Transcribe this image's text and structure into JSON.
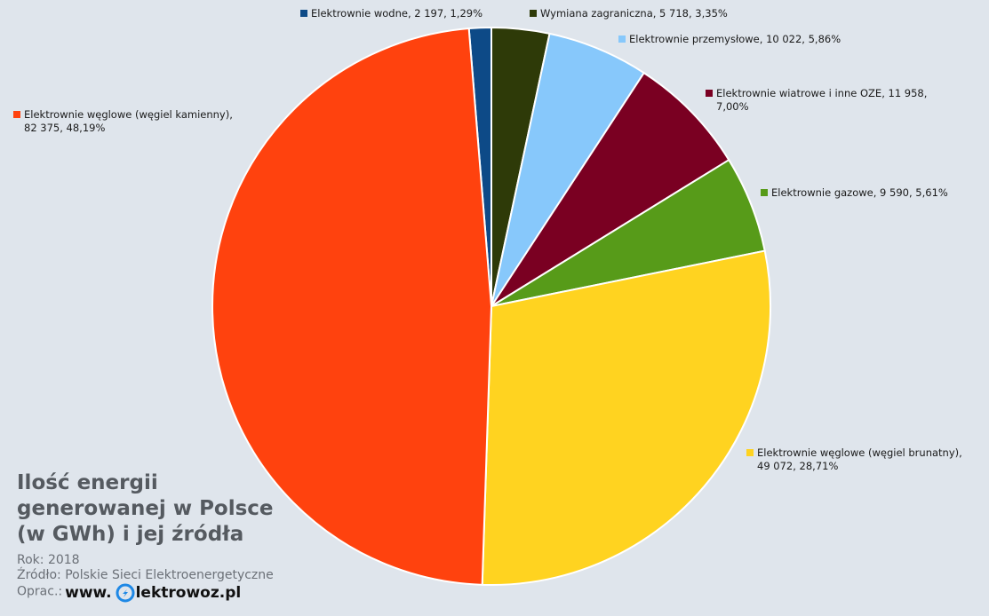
{
  "chart_data": {
    "type": "pie",
    "slices": [
      {
        "label": "Elektrownie wodne, 2 197, 1,29%",
        "value": 2197,
        "percent": 1.29,
        "color": "#0d4a87"
      },
      {
        "label": "Wymiana zagraniczna, 5 718, 3,35%",
        "value": 5718,
        "percent": 3.35,
        "color": "#2e3a08"
      },
      {
        "label": "Elektrownie przemysłowe, 10 022, 5,86%",
        "value": 10022,
        "percent": 5.86,
        "color": "#87c8fb"
      },
      {
        "label": "Elektrownie wiatrowe i inne OZE, 11 958,",
        "label2": "7,00%",
        "value": 11958,
        "percent": 7.0,
        "color": "#7a0022"
      },
      {
        "label": "Elektrownie gazowe, 9 590, 5,61%",
        "value": 9590,
        "percent": 5.61,
        "color": "#579b19"
      },
      {
        "label": "Elektrownie węglowe (węgiel brunatny),",
        "label2": "49 072, 28,71%",
        "value": 49072,
        "percent": 28.71,
        "color": "#ffd320"
      },
      {
        "label": "Elektrownie węglowe (węgiel kamienny),",
        "label2": "82 375, 48,19%",
        "value": 82375,
        "percent": 48.19,
        "color": "#ff420e"
      }
    ],
    "title": "Ilość energii\ngenerowanej w Polsce\n(w GWh) i jej źródła"
  },
  "caption": {
    "year": "Rok: 2018",
    "source": "Źródło: Polskie Sieci Elektroenergetyczne",
    "author_prefix": "Oprac.:",
    "brand_pre": "www.",
    "brand_post": "lektrowoz.pl"
  }
}
